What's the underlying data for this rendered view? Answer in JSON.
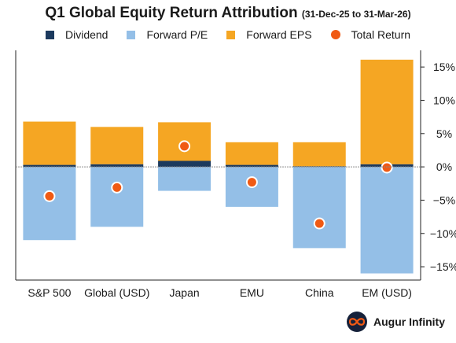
{
  "header": {
    "title": "Q1 Global Equity Return Attribution",
    "subtitle": "(31-Dec-25 to 31-Mar-26)"
  },
  "colors": {
    "dividend": "#1c3a5e",
    "forward_pe": "#94bfe7",
    "forward_eps": "#f5a623",
    "total_return": "#f05a14"
  },
  "chart_data": {
    "type": "bar",
    "stacked": true,
    "categories": [
      "S&P 500",
      "Global (USD)",
      "Japan",
      "EMU",
      "China",
      "EM (USD)"
    ],
    "series": [
      {
        "name": "Dividend",
        "values": [
          0.3,
          0.4,
          0.9,
          0.3,
          0.1,
          0.4
        ]
      },
      {
        "name": "Forward P/E",
        "values": [
          -11.0,
          -9.0,
          -3.6,
          -6.0,
          -12.2,
          -16.0
        ]
      },
      {
        "name": "Forward EPS",
        "values": [
          6.5,
          5.6,
          5.8,
          3.4,
          3.6,
          15.7
        ]
      }
    ],
    "total_return": {
      "name": "Total Return",
      "values": [
        -4.4,
        -3.1,
        3.1,
        -2.3,
        -8.5,
        -0.1
      ]
    },
    "ylim": [
      -17,
      17.5
    ],
    "yticks": [
      15,
      10,
      5,
      0,
      -5,
      -10,
      -15
    ],
    "ytick_labels": [
      "15%",
      "10%",
      "5%",
      "0%",
      "−5%",
      "−10%",
      "−15%"
    ],
    "y_axis_side": "right",
    "grid": false,
    "legend": "top"
  },
  "brand": {
    "name": "Augur Infinity",
    "icon": "infinity-icon"
  }
}
